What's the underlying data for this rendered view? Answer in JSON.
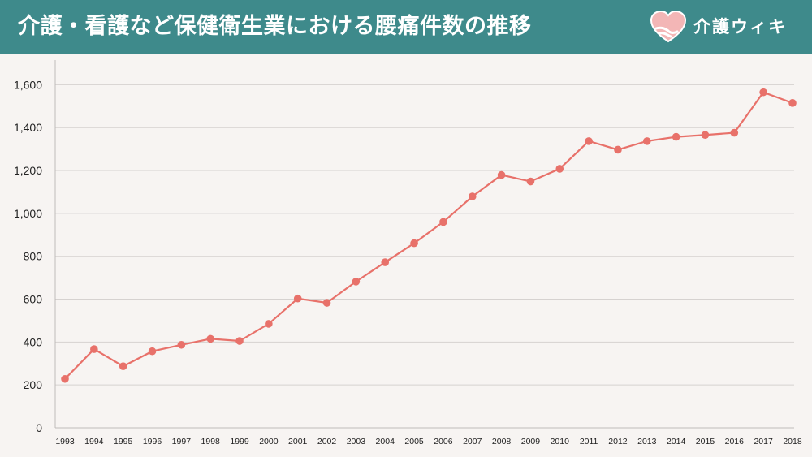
{
  "header": {
    "title": "介護・看護など保健衛生業における腰痛件数の推移",
    "logo_text": "介護ウィキ",
    "logo_icon": "heart-hands-icon",
    "background_color": "#3e8a8b"
  },
  "chart_data": {
    "type": "line",
    "title": "",
    "xlabel": "",
    "ylabel": "",
    "x": [
      "1993",
      "1994",
      "1995",
      "1996",
      "1997",
      "1998",
      "1999",
      "2000",
      "2001",
      "2002",
      "2003",
      "2004",
      "2005",
      "2006",
      "2007",
      "2008",
      "2009",
      "2010",
      "2011",
      "2012",
      "2013",
      "2014",
      "2015",
      "2016",
      "2017",
      "2018"
    ],
    "series": [
      {
        "color": "#e8716a",
        "values": [
          228,
          367,
          287,
          357,
          387,
          415,
          405,
          485,
          603,
          583,
          682,
          772,
          861,
          960,
          1079,
          1179,
          1149,
          1208,
          1337,
          1297,
          1337,
          1357,
          1366,
          1376,
          1565,
          1515
        ]
      }
    ],
    "ylim": [
      0,
      1700
    ],
    "yticks": [
      0,
      200,
      400,
      600,
      800,
      1000,
      1200,
      1400,
      1600
    ],
    "ytick_labels": [
      "0",
      "200",
      "400",
      "600",
      "800",
      "1,000",
      "1,200",
      "1,400",
      "1,600"
    ],
    "grid": true
  }
}
